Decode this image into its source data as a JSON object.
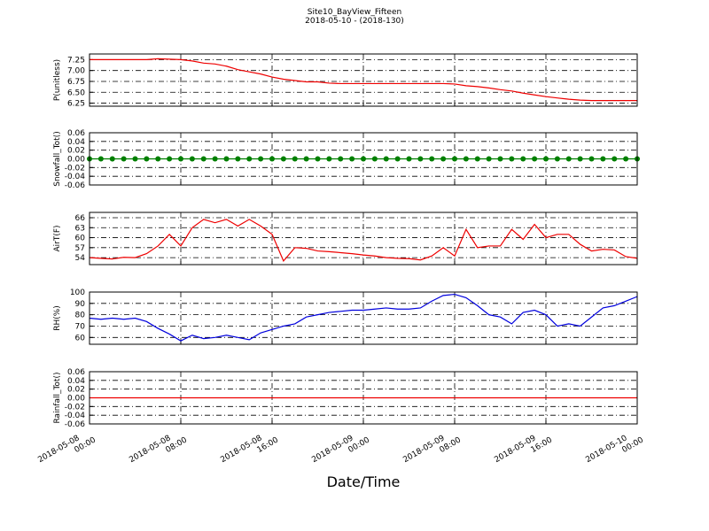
{
  "title": "Site10_BayView_Fifteen",
  "subtitle": "2018-05-10 - (2018-130)",
  "x_label": "Date/Time",
  "x_axis": {
    "xlim": [
      "2018-05-08 00:00",
      "2018-05-10 00:00"
    ],
    "xticks": [
      "2018-05-08 00:00",
      "2018-05-08 08:00",
      "2018-05-08 16:00",
      "2018-05-09 00:00",
      "2018-05-09 08:00",
      "2018-05-09 16:00",
      "2018-05-10 00:00"
    ],
    "x": [
      "2018-05-08 00:00",
      "2018-05-08 01:00",
      "2018-05-08 02:00",
      "2018-05-08 03:00",
      "2018-05-08 04:00",
      "2018-05-08 05:00",
      "2018-05-08 06:00",
      "2018-05-08 07:00",
      "2018-05-08 08:00",
      "2018-05-08 09:00",
      "2018-05-08 10:00",
      "2018-05-08 11:00",
      "2018-05-08 12:00",
      "2018-05-08 13:00",
      "2018-05-08 14:00",
      "2018-05-08 15:00",
      "2018-05-08 16:00",
      "2018-05-08 17:00",
      "2018-05-08 18:00",
      "2018-05-08 19:00",
      "2018-05-08 20:00",
      "2018-05-08 21:00",
      "2018-05-08 22:00",
      "2018-05-08 23:00",
      "2018-05-09 00:00",
      "2018-05-09 01:00",
      "2018-05-09 02:00",
      "2018-05-09 03:00",
      "2018-05-09 04:00",
      "2018-05-09 05:00",
      "2018-05-09 06:00",
      "2018-05-09 07:00",
      "2018-05-09 08:00",
      "2018-05-09 09:00",
      "2018-05-09 10:00",
      "2018-05-09 11:00",
      "2018-05-09 12:00",
      "2018-05-09 13:00",
      "2018-05-09 14:00",
      "2018-05-09 15:00",
      "2018-05-09 16:00",
      "2018-05-09 17:00",
      "2018-05-09 18:00",
      "2018-05-09 19:00",
      "2018-05-09 20:00",
      "2018-05-09 21:00",
      "2018-05-09 22:00",
      "2018-05-09 23:00",
      "2018-05-10 00:00"
    ]
  },
  "chart_data": [
    {
      "type": "line",
      "y_label": "P(unitless)",
      "ylim": [
        6.18,
        7.38
      ],
      "grid": true,
      "yticks": [
        6.25,
        {
          "value": 6.5,
          "label": "6.50"
        },
        6.75,
        {
          "value": 7,
          "label": "7.00"
        },
        7.25
      ],
      "series": [
        {
          "color": "#ee0000",
          "marker": false,
          "values": [
            7.25,
            7.25,
            7.25,
            7.25,
            7.25,
            7.25,
            7.27,
            7.26,
            7.25,
            7.22,
            7.17,
            7.15,
            7.1,
            7.02,
            6.97,
            6.92,
            6.85,
            6.8,
            6.77,
            6.74,
            6.74,
            6.71,
            6.7,
            6.7,
            6.7,
            6.7,
            6.7,
            6.7,
            6.7,
            6.7,
            6.7,
            6.7,
            6.69,
            6.65,
            6.63,
            6.6,
            6.56,
            6.53,
            6.48,
            6.44,
            6.4,
            6.37,
            6.34,
            6.32,
            6.31,
            6.31,
            6.31,
            6.31,
            6.31
          ]
        }
      ]
    },
    {
      "type": "line",
      "y_label": "Snowfall_Tot()",
      "ylim": [
        -0.06,
        0.06
      ],
      "grid": true,
      "yticks": [
        -0.06,
        -0.04,
        -0.02,
        {
          "value": 0,
          "label": "0.00"
        },
        0.02,
        0.04,
        0.06
      ],
      "series": [
        {
          "color": "#007f00",
          "marker": true,
          "values": [
            0,
            0,
            0,
            0,
            0,
            0,
            0,
            0,
            0,
            0,
            0,
            0,
            0,
            0,
            0,
            0,
            0,
            0,
            0,
            0,
            0,
            0,
            0,
            0,
            0,
            0,
            0,
            0,
            0,
            0,
            0,
            0,
            0,
            0,
            0,
            0,
            0,
            0,
            0,
            0,
            0,
            0,
            0,
            0,
            0,
            0,
            0,
            0,
            0
          ]
        }
      ]
    },
    {
      "type": "line",
      "y_label": "AirT(F)",
      "ylim": [
        51.9,
        67.6
      ],
      "grid": true,
      "yticks": [
        54,
        57,
        60,
        63,
        66
      ],
      "series": [
        {
          "color": "#ee0000",
          "marker": false,
          "values": [
            54,
            53.8,
            53.6,
            54.1,
            54,
            55.2,
            57.5,
            61,
            57.5,
            63,
            65.5,
            64.5,
            65.5,
            63.5,
            65.5,
            63.5,
            61,
            53,
            57,
            56.8,
            56,
            55.8,
            55.5,
            55.2,
            54.8,
            54.5,
            54,
            53.8,
            53.7,
            53.3,
            54.5,
            57,
            54.5,
            62.5,
            57,
            57.5,
            57.5,
            62.5,
            59.5,
            64,
            60,
            61,
            61,
            58,
            56,
            56.5,
            56.3,
            54.3,
            53.8
          ]
        }
      ]
    },
    {
      "type": "line",
      "y_label": "RH(%)",
      "ylim": [
        54,
        100
      ],
      "grid": true,
      "yticks": [
        60,
        70,
        80,
        90,
        100
      ],
      "series": [
        {
          "color": "#0000dd",
          "marker": false,
          "values": [
            77,
            76,
            77,
            76,
            77,
            74,
            68,
            63,
            57,
            62,
            59,
            60,
            62,
            60,
            58,
            64,
            67,
            70,
            72,
            78,
            80,
            82,
            83,
            84,
            84,
            85,
            86,
            85,
            85,
            86,
            92,
            97,
            98,
            95,
            88,
            80,
            78,
            72,
            82,
            84,
            80,
            70,
            72,
            70,
            78,
            86,
            88,
            92,
            96
          ]
        }
      ]
    },
    {
      "type": "line",
      "y_label": "Rainfall_Tot()",
      "ylim": [
        -0.06,
        0.06
      ],
      "grid": true,
      "yticks": [
        -0.06,
        -0.04,
        -0.02,
        {
          "value": 0,
          "label": "0.00"
        },
        0.02,
        0.04,
        0.06
      ],
      "series": [
        {
          "color": "#ee0000",
          "marker": false,
          "values": [
            0,
            0,
            0,
            0,
            0,
            0,
            0,
            0,
            0,
            0,
            0,
            0,
            0,
            0,
            0,
            0,
            0,
            0,
            0,
            0,
            0,
            0,
            0,
            0,
            0,
            0,
            0,
            0,
            0,
            0,
            0,
            0,
            0,
            0,
            0,
            0,
            0,
            0,
            0,
            0,
            0,
            0,
            0,
            0,
            0,
            0,
            0,
            0,
            0
          ]
        }
      ]
    }
  ]
}
